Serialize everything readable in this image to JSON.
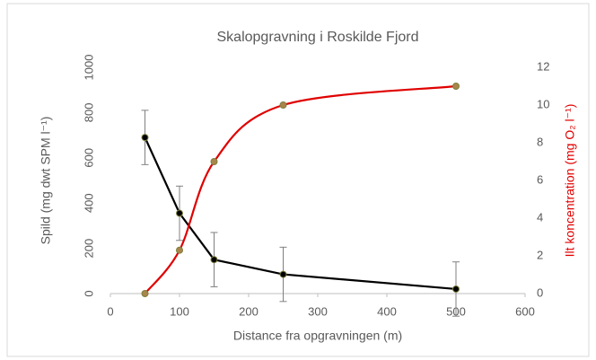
{
  "chart_data": {
    "type": "line",
    "title": "Skalopgravning i Roskilde Fjord",
    "xlabel": "Distance fra opgravningen (m)",
    "ylabel": "Spild (mg dwt SPM l⁻¹)",
    "y2label": "Ilt koncentration (mg O₂ l⁻¹)",
    "y2label_color": "#e00000",
    "x": [
      50,
      100,
      150,
      250,
      500
    ],
    "xlim": [
      0,
      600
    ],
    "xticks": [
      0,
      100,
      200,
      300,
      400,
      500,
      600
    ],
    "ylim": [
      0,
      1000
    ],
    "yticks": [
      0,
      200,
      400,
      600,
      800,
      1000
    ],
    "y2lim": [
      0,
      12
    ],
    "y2ticks": [
      0,
      2,
      4,
      6,
      8,
      10,
      12
    ],
    "series": [
      {
        "color": "#000000",
        "marker_color": "#000000",
        "values": [
          690,
          355,
          150,
          85,
          20
        ],
        "errors": [
          120,
          120,
          120,
          120,
          120
        ],
        "smooth": false
      },
      {
        "color": "#e00000",
        "marker_color": "#a8864a",
        "axis": "y2",
        "values": [
          0,
          2.3,
          7,
          10,
          11
        ],
        "smooth": true
      }
    ]
  }
}
